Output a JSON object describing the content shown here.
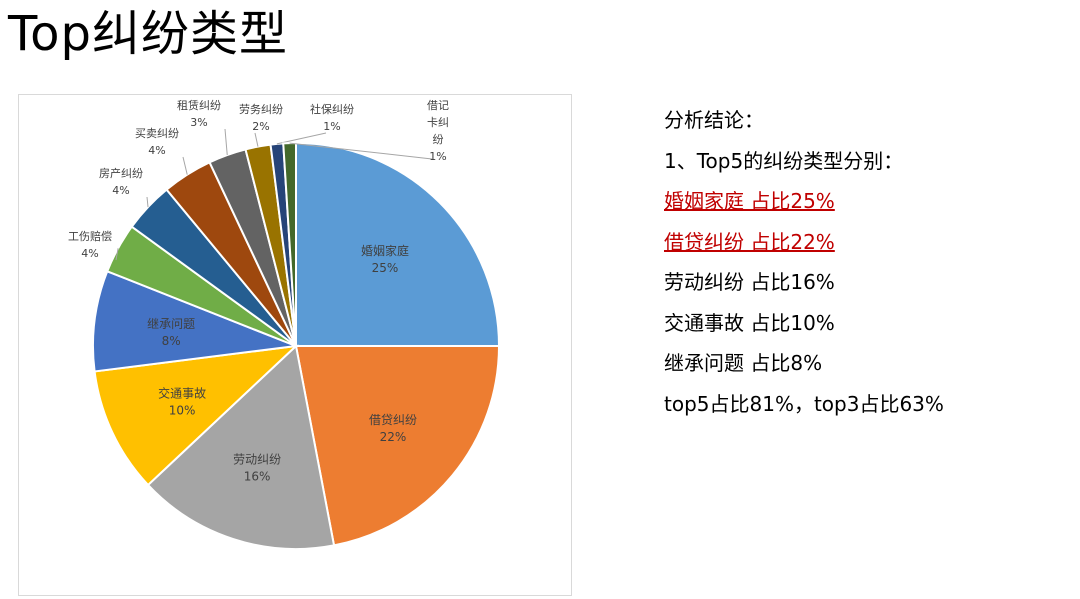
{
  "title": "Top纠纷类型",
  "chart_data": {
    "type": "pie",
    "title": "",
    "slices": [
      {
        "name": "婚姻家庭",
        "value": 25,
        "label": "25%",
        "color": "#5b9bd5"
      },
      {
        "name": "借贷纠纷",
        "value": 22,
        "label": "22%",
        "color": "#ed7d31"
      },
      {
        "name": "劳动纠纷",
        "value": 16,
        "label": "16%",
        "color": "#a5a5a5"
      },
      {
        "name": "交通事故",
        "value": 10,
        "label": "10%",
        "color": "#ffc000"
      },
      {
        "name": "继承问题",
        "value": 8,
        "label": "8%",
        "color": "#4472c4"
      },
      {
        "name": "工伤赔偿",
        "value": 4,
        "label": "4%",
        "color": "#70ad47"
      },
      {
        "name": "房产纠纷",
        "value": 4,
        "label": "4%",
        "color": "#255e91"
      },
      {
        "name": "买卖纠纷",
        "value": 4,
        "label": "4%",
        "color": "#9e480e"
      },
      {
        "name": "租赁纠纷",
        "value": 3,
        "label": "3%",
        "color": "#636363"
      },
      {
        "name": "劳务纠纷",
        "value": 2,
        "label": "2%",
        "color": "#997300"
      },
      {
        "name": "社保纠纷",
        "value": 1,
        "label": "1%",
        "color": "#264478"
      },
      {
        "name": "借记卡纠纷",
        "value": 1,
        "label": "1%",
        "color": "#43682b"
      }
    ]
  },
  "conclusion": {
    "heading": "分析结论：",
    "intro": "1、Top5的纠纷类型分别：",
    "items": [
      {
        "text": "婚姻家庭 占比25%",
        "highlight": true
      },
      {
        "text": "借贷纠纷 占比22%",
        "highlight": true
      },
      {
        "text": "劳动纠纷 占比16%",
        "highlight": false
      },
      {
        "text": "交通事故 占比10%",
        "highlight": false
      },
      {
        "text": "继承问题 占比8%",
        "highlight": false
      }
    ],
    "summary": "top5占比81%，top3占比63%"
  }
}
